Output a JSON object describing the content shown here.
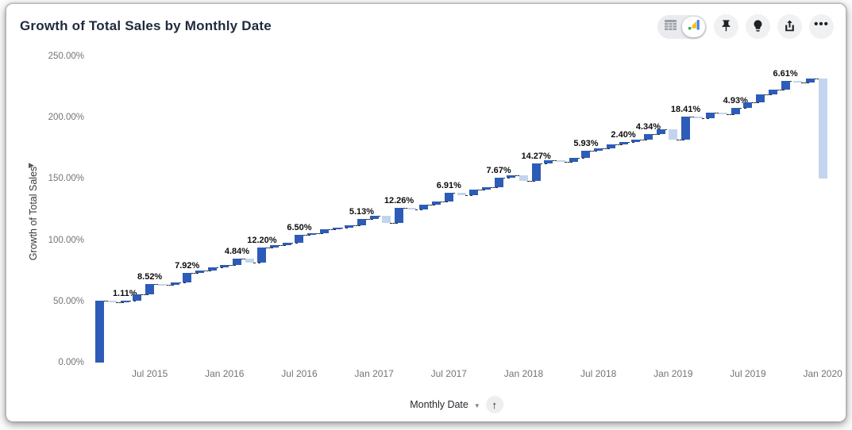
{
  "header": {
    "title": "Growth of Total Sales by Monthly Date"
  },
  "toolbar": {
    "view_toggle": {
      "options": [
        "table-view",
        "chart-view"
      ],
      "selected": "chart-view"
    },
    "buttons": [
      "pin",
      "insights-lightbulb",
      "share-export",
      "more-options"
    ],
    "more_options_glyph": "•••"
  },
  "axes": {
    "y_label": "Growth of Total Sales",
    "y_expand_glyph": "▶",
    "x_label": "Monthly Date",
    "x_caret_glyph": "▼",
    "x_sort_glyph": "↑"
  },
  "chart_data": {
    "type": "bar",
    "variant": "waterfall",
    "title": "Growth of Total Sales by Monthly Date",
    "xlabel": "Monthly Date",
    "ylabel": "Growth of Total Sales",
    "ylim": [
      0,
      250
    ],
    "grid": false,
    "legend": false,
    "y_ticks": [
      "0.00%",
      "50.00%",
      "100.00%",
      "150.00%",
      "200.00%",
      "250.00%"
    ],
    "y_tick_values": [
      0,
      50,
      100,
      150,
      200,
      250
    ],
    "x_ticks": [
      {
        "index": 4,
        "label": "Jul 2015"
      },
      {
        "index": 10,
        "label": "Jan 2016"
      },
      {
        "index": 16,
        "label": "Jul 2016"
      },
      {
        "index": 22,
        "label": "Jan 2017"
      },
      {
        "index": 28,
        "label": "Jul 2017"
      },
      {
        "index": 34,
        "label": "Jan 2018"
      },
      {
        "index": 40,
        "label": "Jul 2018"
      },
      {
        "index": 46,
        "label": "Jan 2019"
      },
      {
        "index": 52,
        "label": "Jul 2019"
      },
      {
        "index": 58,
        "label": "Jan 2020"
      }
    ],
    "visible_bar_labels": [
      "1.11%",
      "8.52%",
      "7.92%",
      "4.84%",
      "12.20%",
      "6.50%",
      "5.13%",
      "12.26%",
      "6.91%",
      "7.67%",
      "14.27%",
      "5.93%",
      "2.40%",
      "4.34%",
      "18.41%",
      "4.93%",
      "6.61%"
    ],
    "colors": {
      "increase": "#2c5cb8",
      "decrease": "#c3d4ee",
      "connector": "#2a2a2a"
    },
    "bars": [
      {
        "month": "Mar 2015",
        "delta": 50.36,
        "label": null
      },
      {
        "month": "Apr 2015",
        "delta": -0.82,
        "label": null
      },
      {
        "month": "May 2015",
        "delta": 1.11,
        "label": "1.11%"
      },
      {
        "month": "Jun 2015",
        "delta": 4.8,
        "label": null
      },
      {
        "month": "Jul 2015",
        "delta": 8.52,
        "label": "8.52%"
      },
      {
        "month": "Aug 2015",
        "delta": -0.55,
        "label": null
      },
      {
        "month": "Sep 2015",
        "delta": 2.1,
        "label": null
      },
      {
        "month": "Oct 2015",
        "delta": 7.92,
        "label": "7.92%"
      },
      {
        "month": "Nov 2015",
        "delta": 1.9,
        "label": null
      },
      {
        "month": "Dec 2015",
        "delta": 2.4,
        "label": null
      },
      {
        "month": "Jan 2016",
        "delta": 2.2,
        "label": null
      },
      {
        "month": "Feb 2016",
        "delta": 4.84,
        "label": "4.84%"
      },
      {
        "month": "Mar 2016",
        "delta": -3.2,
        "label": null
      },
      {
        "month": "Apr 2016",
        "delta": 12.2,
        "label": "12.20%"
      },
      {
        "month": "May 2016",
        "delta": 1.8,
        "label": null
      },
      {
        "month": "Jun 2016",
        "delta": 2.3,
        "label": null
      },
      {
        "month": "Jul 2016",
        "delta": 6.5,
        "label": "6.50%"
      },
      {
        "month": "Aug 2016",
        "delta": 1.4,
        "label": null
      },
      {
        "month": "Sep 2016",
        "delta": 2.8,
        "label": null
      },
      {
        "month": "Oct 2016",
        "delta": 1.2,
        "label": null
      },
      {
        "month": "Nov 2016",
        "delta": 2.4,
        "label": null
      },
      {
        "month": "Dec 2016",
        "delta": 5.13,
        "label": "5.13%"
      },
      {
        "month": "Jan 2017",
        "delta": 2.6,
        "label": null
      },
      {
        "month": "Feb 2017",
        "delta": -5.8,
        "label": null
      },
      {
        "month": "Mar 2017",
        "delta": 12.26,
        "label": "12.26%"
      },
      {
        "month": "Apr 2017",
        "delta": -1.2,
        "label": null
      },
      {
        "month": "May 2017",
        "delta": 3.4,
        "label": null
      },
      {
        "month": "Jun 2017",
        "delta": 3.2,
        "label": null
      },
      {
        "month": "Jul 2017",
        "delta": 6.91,
        "label": "6.91%"
      },
      {
        "month": "Aug 2017",
        "delta": -2.3,
        "label": null
      },
      {
        "month": "Sep 2017",
        "delta": 4.8,
        "label": null
      },
      {
        "month": "Oct 2017",
        "delta": 2.1,
        "label": null
      },
      {
        "month": "Nov 2017",
        "delta": 7.67,
        "label": "7.67%"
      },
      {
        "month": "Dec 2017",
        "delta": 2.2,
        "label": null
      },
      {
        "month": "Jan 2018",
        "delta": -4.9,
        "label": null
      },
      {
        "month": "Feb 2018",
        "delta": 14.27,
        "label": "14.27%"
      },
      {
        "month": "Mar 2018",
        "delta": 2.4,
        "label": null
      },
      {
        "month": "Apr 2018",
        "delta": -1.1,
        "label": null
      },
      {
        "month": "May 2018",
        "delta": 3.1,
        "label": null
      },
      {
        "month": "Jun 2018",
        "delta": 5.93,
        "label": "5.93%"
      },
      {
        "month": "Jul 2018",
        "delta": 2.1,
        "label": null
      },
      {
        "month": "Aug 2018",
        "delta": 2.9,
        "label": null
      },
      {
        "month": "Sep 2018",
        "delta": 2.4,
        "label": "2.40%"
      },
      {
        "month": "Oct 2018",
        "delta": 1.9,
        "label": null
      },
      {
        "month": "Nov 2018",
        "delta": 4.34,
        "label": "4.34%"
      },
      {
        "month": "Dec 2018",
        "delta": 4.0,
        "label": null
      },
      {
        "month": "Jan 2019",
        "delta": -8.3,
        "label": null
      },
      {
        "month": "Feb 2019",
        "delta": 18.41,
        "label": "18.41%"
      },
      {
        "month": "Mar 2019",
        "delta": -1.0,
        "label": null
      },
      {
        "month": "Apr 2019",
        "delta": 4.2,
        "label": null
      },
      {
        "month": "May 2019",
        "delta": -0.9,
        "label": null
      },
      {
        "month": "Jun 2019",
        "delta": 4.93,
        "label": "4.93%"
      },
      {
        "month": "Jul 2019",
        "delta": 4.4,
        "label": null
      },
      {
        "month": "Aug 2019",
        "delta": 6.4,
        "label": null
      },
      {
        "month": "Sep 2019",
        "delta": 4.4,
        "label": null
      },
      {
        "month": "Oct 2019",
        "delta": 6.61,
        "label": "6.61%"
      },
      {
        "month": "Nov 2019",
        "delta": -0.9,
        "label": null
      },
      {
        "month": "Dec 2019",
        "delta": 3.3,
        "label": null
      },
      {
        "month": "Jan 2020",
        "delta": -82.0,
        "label": null
      }
    ]
  }
}
